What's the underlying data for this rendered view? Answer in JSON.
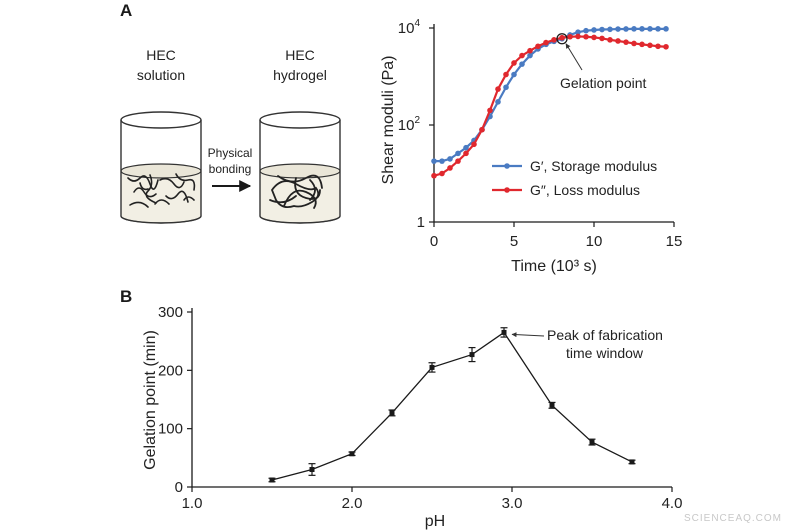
{
  "panel_a": {
    "letter": "A",
    "solution_label_1": "HEC",
    "solution_label_2": "solution",
    "hydrogel_label_1": "HEC",
    "hydrogel_label_2": "hydrogel",
    "arrow_label_1": "Physical",
    "arrow_label_2": "bonding",
    "annotation": "Gelation point"
  },
  "panel_b": {
    "letter": "B",
    "annotation_1": "Peak of fabrication",
    "annotation_2": "time window"
  },
  "watermark": "SCIENCEAQ.COM",
  "chart_data": [
    {
      "type": "line",
      "xlabel": "Time (10³ s)",
      "ylabel": "Shear moduli (Pa)",
      "xlim": [
        0,
        15
      ],
      "ylim": [
        1,
        10000
      ],
      "yscale": "log",
      "x_ticks": [
        "0",
        "5",
        "10",
        "15"
      ],
      "y_ticks": [
        {
          "base": "1",
          "exp": ""
        },
        {
          "base": "10",
          "exp": "2"
        },
        {
          "base": "10",
          "exp": "4"
        }
      ],
      "legend_placement": "bottom-right",
      "x": [
        0.0,
        0.5,
        1.0,
        1.5,
        2.0,
        2.5,
        3.0,
        3.5,
        4.0,
        4.5,
        5.0,
        5.5,
        6.0,
        6.5,
        7.0,
        7.5,
        8.0,
        8.5,
        9.0,
        9.5,
        10.0,
        10.5,
        11.0,
        11.5,
        12.0,
        12.5,
        13.0,
        13.5,
        14.0,
        14.5
      ],
      "series": [
        {
          "name": "G′, Storage modulus",
          "color": "#4a7bc2",
          "values": [
            18,
            18,
            20,
            26,
            34,
            48,
            80,
            150,
            300,
            600,
            1100,
            1800,
            2700,
            3700,
            4600,
            5300,
            6000,
            7200,
            8200,
            8800,
            9100,
            9300,
            9400,
            9500,
            9550,
            9600,
            9600,
            9600,
            9600,
            9600
          ]
        },
        {
          "name": "G″, Loss modulus",
          "color": "#e0282e",
          "values": [
            9,
            10,
            13,
            18,
            26,
            40,
            80,
            200,
            550,
            1100,
            1900,
            2700,
            3400,
            4200,
            5000,
            5700,
            6300,
            6600,
            6700,
            6600,
            6400,
            6100,
            5700,
            5400,
            5100,
            4800,
            4600,
            4400,
            4200,
            4100
          ]
        }
      ],
      "annotation_point": {
        "x": 8.0,
        "y": 6000
      }
    },
    {
      "type": "line",
      "xlabel": "pH",
      "ylabel": "Gelation point (min)",
      "xlim": [
        1.0,
        4.0
      ],
      "ylim": [
        0,
        300
      ],
      "x_ticks": [
        "1.0",
        "2.0",
        "3.0",
        "4.0"
      ],
      "y_ticks": [
        "0",
        "100",
        "200",
        "300"
      ],
      "x": [
        1.5,
        1.75,
        2.0,
        2.25,
        2.5,
        2.75,
        2.95,
        3.25,
        3.5,
        3.75
      ],
      "series": [
        {
          "color": "#1a1a1a",
          "values": [
            12,
            30,
            57,
            127,
            205,
            227,
            265,
            140,
            77,
            43
          ],
          "errors": [
            3,
            10,
            3,
            5,
            8,
            12,
            8,
            5,
            5,
            3
          ]
        }
      ],
      "annotation_point": {
        "x": 2.95,
        "y": 265
      }
    }
  ]
}
